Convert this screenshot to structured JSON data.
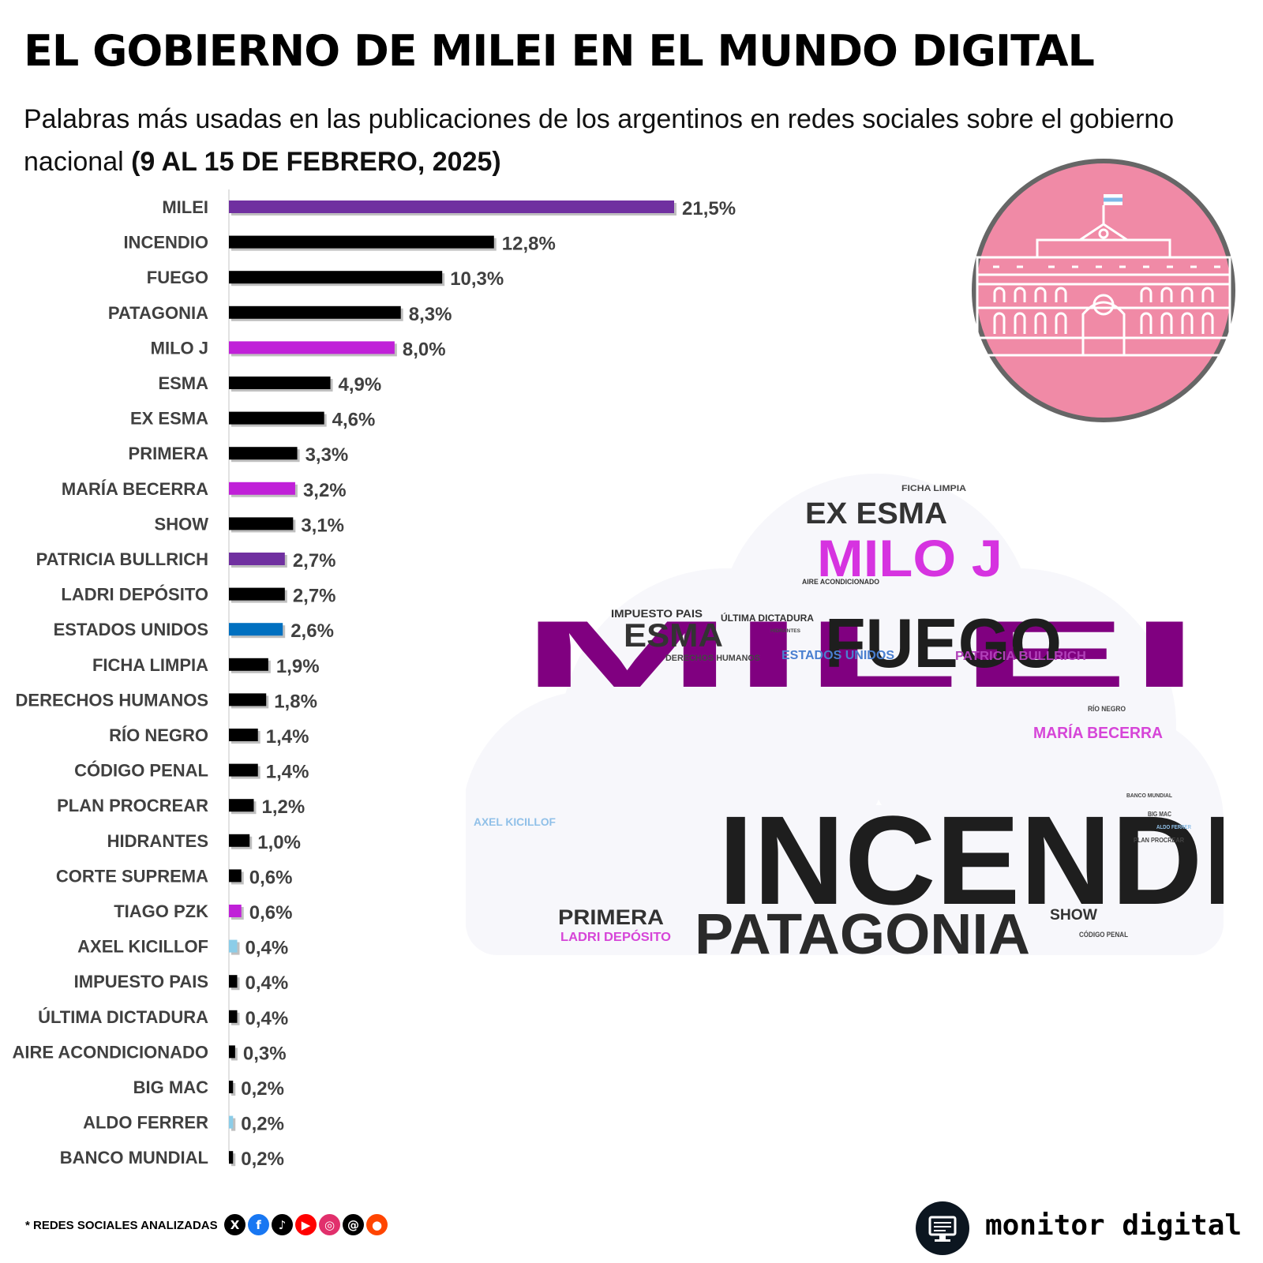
{
  "header": {
    "title": "EL GOBIERNO DE MILEI EN EL MUNDO DIGITAL",
    "subtitle": "Palabras más usadas en las publicaciones de los argentinos en redes sociales sobre el gobierno nacional ",
    "date_range": "(9 AL 15 DE FEBRERO, 2025)"
  },
  "chart_data": {
    "type": "bar",
    "orientation": "horizontal",
    "title": "Palabras más usadas en las publicaciones de los argentinos en redes sociales sobre el gobierno nacional (9 AL 15 DE FEBRERO, 2025)",
    "xlabel": "",
    "ylabel": "",
    "xlim": [
      0,
      21.5
    ],
    "grid": false,
    "categories": [
      "MILEI",
      "INCENDIO",
      "FUEGO",
      "PATAGONIA",
      "MILO J",
      "ESMA",
      "EX ESMA",
      "PRIMERA",
      "MARÍA BECERRA",
      "SHOW",
      "PATRICIA BULLRICH",
      "LADRI DEPÓSITO",
      "ESTADOS UNIDOS",
      "FICHA LIMPIA",
      "DERECHOS HUMANOS",
      "RÍO NEGRO",
      "CÓDIGO PENAL",
      "PLAN PROCREAR",
      "HIDRANTES",
      "CORTE SUPREMA",
      "TIAGO PZK",
      "AXEL KICILLOF",
      "IMPUESTO PAIS",
      "ÚLTIMA DICTADURA",
      "AIRE ACONDICIONADO",
      "BIG MAC",
      "ALDO FERRER",
      "BANCO MUNDIAL"
    ],
    "values": [
      21.5,
      12.8,
      10.3,
      8.3,
      8.0,
      4.9,
      4.6,
      3.3,
      3.2,
      3.1,
      2.7,
      2.7,
      2.6,
      1.9,
      1.8,
      1.4,
      1.4,
      1.2,
      1.0,
      0.6,
      0.6,
      0.4,
      0.4,
      0.4,
      0.3,
      0.2,
      0.2,
      0.2
    ],
    "value_labels": [
      "21,5%",
      "12,8%",
      "10,3%",
      "8,3%",
      "8,0%",
      "4,9%",
      "4,6%",
      "3,3%",
      "3,2%",
      "3,1%",
      "2,7%",
      "2,7%",
      "2,6%",
      "1,9%",
      "1,8%",
      "1,4%",
      "1,4%",
      "1,2%",
      "1,0%",
      "0,6%",
      "0,6%",
      "0,4%",
      "0,4%",
      "0,4%",
      "0,3%",
      "0,2%",
      "0,2%",
      "0,2%"
    ],
    "colors": [
      "#7030a0",
      "#000000",
      "#000000",
      "#000000",
      "#c020d8",
      "#000000",
      "#000000",
      "#000000",
      "#c020d8",
      "#000000",
      "#7030a0",
      "#000000",
      "#0070c0",
      "#000000",
      "#000000",
      "#000000",
      "#000000",
      "#000000",
      "#000000",
      "#000000",
      "#c020d8",
      "#8ccde8",
      "#000000",
      "#000000",
      "#000000",
      "#000000",
      "#8ccde8",
      "#000000"
    ]
  },
  "word_cloud": [
    {
      "text": "MILEI",
      "color": "#800080"
    },
    {
      "text": "INCENDIO",
      "color": "#1e1e1e"
    },
    {
      "text": "FUEGO",
      "color": "#1e1e1e"
    },
    {
      "text": "PATAGONIA",
      "color": "#2a2a2a"
    },
    {
      "text": "MILO J",
      "color": "#d633e0"
    },
    {
      "text": "EX ESMA",
      "color": "#333333"
    },
    {
      "text": "ESMA",
      "color": "#333333"
    },
    {
      "text": "PRIMERA",
      "color": "#333333"
    },
    {
      "text": "MARÍA BECERRA",
      "color": "#d645d8"
    },
    {
      "text": "SHOW",
      "color": "#333333"
    },
    {
      "text": "PATRICIA BULLRICH",
      "color": "#b040b8"
    },
    {
      "text": "LADRI DEPÓSITO",
      "color": "#d645d8"
    },
    {
      "text": "ESTADOS UNIDOS",
      "color": "#4a7fd0"
    },
    {
      "text": "FICHA LIMPIA",
      "color": "#444444"
    },
    {
      "text": "DERECHOS HUMANOS",
      "color": "#444444"
    },
    {
      "text": "RÍO NEGRO",
      "color": "#444444"
    },
    {
      "text": "CÓDIGO PENAL",
      "color": "#444444"
    },
    {
      "text": "PLAN PROCREAR",
      "color": "#444444"
    },
    {
      "text": "HIDRANTES",
      "color": "#444444"
    },
    {
      "text": "AXEL KICILLOF",
      "color": "#90c0e8"
    },
    {
      "text": "IMPUESTO PAIS",
      "color": "#333333"
    },
    {
      "text": "ÚLTIMA DICTADURA",
      "color": "#333333"
    },
    {
      "text": "AIRE ACONDICIONADO",
      "color": "#333333"
    },
    {
      "text": "BIG MAC",
      "color": "#444444"
    },
    {
      "text": "ALDO FERRER",
      "color": "#90c0e8"
    },
    {
      "text": "BANCO MUNDIAL",
      "color": "#444444"
    }
  ],
  "emblem": {
    "name": "casa-rosada-icon",
    "fill": "#f08aa6"
  },
  "footer": {
    "networks_label": "* REDES SOCIALES ANALIZADAS",
    "networks": [
      "x-icon",
      "facebook-icon",
      "tiktok-icon",
      "youtube-icon",
      "instagram-icon",
      "threads-icon",
      "reddit-icon"
    ],
    "brand": "monitor digital"
  }
}
